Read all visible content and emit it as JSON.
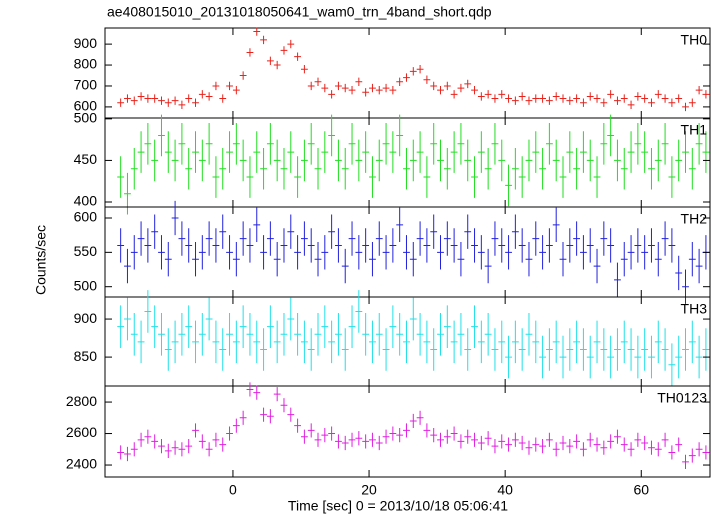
{
  "chart_data": {
    "type": "errorbar",
    "title": "ae408015010_20131018050641_wam0_trn_4band_short.qdp",
    "xlabel": "Time [sec] 0 = 2013/10/18 05:06:41",
    "ylabel": "Counts/sec",
    "xlim": [
      -18.8,
      70.1
    ],
    "xticks": [
      0,
      20,
      40,
      60
    ],
    "binwidth": 1,
    "x": [
      -16.5,
      -15.5,
      -14.5,
      -13.5,
      -12.5,
      -11.5,
      -10.5,
      -9.5,
      -8.5,
      -7.5,
      -6.5,
      -5.5,
      -4.5,
      -3.5,
      -2.5,
      -1.5,
      -0.5,
      0.5,
      1.5,
      2.5,
      3.5,
      4.5,
      5.5,
      6.5,
      7.5,
      8.5,
      9.5,
      10.5,
      11.5,
      12.5,
      13.5,
      14.5,
      15.5,
      16.5,
      17.5,
      18.5,
      19.5,
      20.5,
      21.5,
      22.5,
      23.5,
      24.5,
      25.5,
      26.5,
      27.5,
      28.5,
      29.5,
      30.5,
      31.5,
      32.5,
      33.5,
      34.5,
      35.5,
      36.5,
      37.5,
      38.5,
      39.5,
      40.5,
      41.5,
      42.5,
      43.5,
      44.5,
      45.5,
      46.5,
      47.5,
      48.5,
      49.5,
      50.5,
      51.5,
      52.5,
      53.5,
      54.5,
      55.5,
      56.5,
      57.5,
      58.5,
      59.5,
      60.5,
      61.5,
      62.5,
      63.5,
      64.5,
      65.5,
      66.5,
      67.5,
      68.5,
      69.5
    ],
    "panels": [
      {
        "name": "TH0",
        "color": "#e8231c",
        "error": 20,
        "ylim": [
          547,
          977
        ],
        "yticks": [
          600,
          700,
          800,
          900
        ],
        "values": [
          620,
          640,
          630,
          650,
          640,
          640,
          630,
          620,
          630,
          610,
          640,
          620,
          660,
          650,
          700,
          640,
          700,
          680,
          750,
          860,
          960,
          920,
          820,
          800,
          870,
          900,
          840,
          780,
          700,
          720,
          690,
          660,
          700,
          690,
          680,
          720,
          670,
          690,
          680,
          690,
          680,
          720,
          740,
          770,
          780,
          730,
          700,
          680,
          700,
          660,
          690,
          710,
          680,
          650,
          660,
          640,
          660,
          640,
          630,
          650,
          630,
          640,
          640,
          630,
          650,
          640,
          630,
          640,
          620,
          650,
          640,
          620,
          660,
          630,
          640,
          610,
          650,
          640,
          620,
          660,
          640,
          620,
          640,
          600,
          620,
          680,
          660
        ]
      },
      {
        "name": "TH1",
        "color": "#22dd22",
        "error": 25,
        "ylim": [
          394,
          501
        ],
        "yticks": [
          400,
          450,
          500
        ],
        "values": [
          430,
          410,
          440,
          460,
          470,
          450,
          480,
          460,
          450,
          470,
          440,
          460,
          450,
          470,
          430,
          440,
          460,
          470,
          450,
          430,
          460,
          440,
          470,
          450,
          440,
          460,
          430,
          450,
          470,
          440,
          460,
          480,
          450,
          440,
          470,
          450,
          460,
          430,
          450,
          470,
          460,
          480,
          440,
          450,
          460,
          430,
          470,
          450,
          440,
          460,
          470,
          450,
          430,
          460,
          440,
          470,
          450,
          420,
          440,
          430,
          450,
          460,
          440,
          470,
          450,
          430,
          460,
          440,
          460,
          450,
          430,
          470,
          480,
          450,
          440,
          460,
          470,
          460,
          440,
          450,
          470,
          430,
          450,
          460,
          440,
          470,
          460
        ]
      },
      {
        "name": "TH2",
        "color": "#2222dd",
        "error": 25,
        "ylim": [
          485,
          616
        ],
        "yticks": [
          500,
          550,
          600
        ],
        "values": [
          560,
          530,
          550,
          570,
          560,
          580,
          550,
          540,
          600,
          570,
          560,
          540,
          550,
          570,
          560,
          580,
          550,
          540,
          570,
          560,
          590,
          550,
          570,
          540,
          560,
          580,
          550,
          570,
          560,
          540,
          550,
          580,
          560,
          530,
          570,
          550,
          560,
          540,
          570,
          550,
          560,
          590,
          550,
          540,
          570,
          560,
          580,
          550,
          570,
          560,
          540,
          580,
          560,
          550,
          530,
          570,
          560,
          550,
          580,
          560,
          540,
          570,
          550,
          560,
          590,
          540,
          560,
          570,
          550,
          560,
          530,
          570,
          560,
          510,
          540,
          550,
          560,
          550,
          560,
          540,
          570,
          560,
          520,
          500,
          540,
          530,
          550
        ]
      },
      {
        "name": "TH3",
        "color": "#22e0e8",
        "error": 28,
        "ylim": [
          812,
          929
        ],
        "yticks": [
          850,
          900
        ],
        "values": [
          890,
          900,
          880,
          870,
          910,
          890,
          880,
          860,
          870,
          880,
          890,
          870,
          880,
          900,
          870,
          860,
          880,
          870,
          890,
          880,
          870,
          860,
          890,
          870,
          880,
          900,
          880,
          870,
          860,
          880,
          890,
          870,
          880,
          860,
          890,
          910,
          880,
          870,
          880,
          860,
          890,
          880,
          870,
          900,
          880,
          870,
          860,
          880,
          890,
          870,
          880,
          860,
          890,
          870,
          880,
          860,
          870,
          850,
          870,
          860,
          880,
          870,
          850,
          860,
          870,
          850,
          860,
          870,
          860,
          850,
          870,
          860,
          850,
          860,
          870,
          860,
          850,
          860,
          850,
          870,
          860,
          840,
          850,
          860,
          870,
          850,
          860
        ]
      },
      {
        "name": "TH0123",
        "color": "#e020e0",
        "error": 45,
        "ylim": [
          2324,
          2902
        ],
        "yticks": [
          2400,
          2600,
          2800
        ],
        "values": [
          2480,
          2470,
          2500,
          2560,
          2580,
          2550,
          2520,
          2490,
          2510,
          2500,
          2520,
          2620,
          2550,
          2500,
          2560,
          2530,
          2600,
          2650,
          2700,
          2880,
          2860,
          2720,
          2710,
          2850,
          2780,
          2720,
          2650,
          2580,
          2620,
          2560,
          2590,
          2600,
          2550,
          2540,
          2560,
          2570,
          2550,
          2560,
          2540,
          2580,
          2600,
          2590,
          2620,
          2680,
          2700,
          2620,
          2590,
          2560,
          2580,
          2600,
          2550,
          2580,
          2560,
          2540,
          2570,
          2520,
          2550,
          2530,
          2560,
          2540,
          2510,
          2530,
          2520,
          2560,
          2500,
          2540,
          2520,
          2550,
          2500,
          2560,
          2530,
          2510,
          2550,
          2580,
          2530,
          2500,
          2560,
          2540,
          2510,
          2500,
          2560,
          2480,
          2530,
          2420,
          2460,
          2500,
          2480
        ]
      }
    ]
  }
}
